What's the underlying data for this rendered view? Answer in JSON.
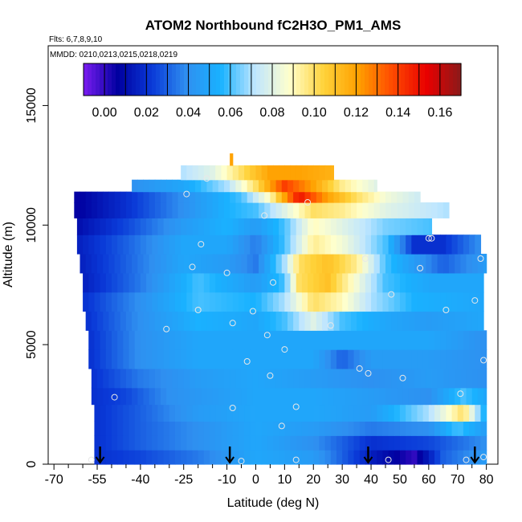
{
  "chart_data": {
    "type": "heatmap",
    "title": "ATOM2 Northbound fC2H3O_PM1_AMS",
    "flights_text": "Flts: 6,7,8,9,10",
    "dates_text": "MMDD: 0210,0213,0215,0218,0219",
    "xlabel": "Latitude (deg N)",
    "ylabel": "Altitude (m)",
    "xlim": [
      -72,
      84
    ],
    "ylim": [
      0,
      17500
    ],
    "x_ticks": [
      -70,
      -55,
      -40,
      -25,
      -10,
      0,
      10,
      20,
      30,
      40,
      50,
      60,
      70,
      80
    ],
    "x_tick_labels": [
      "-70",
      "-55",
      "-40",
      "-25",
      "-10",
      "0",
      "10",
      "20",
      "30",
      "40",
      "50",
      "60",
      "70",
      "80"
    ],
    "y_ticks": [
      0,
      5000,
      10000,
      15000
    ],
    "y_tick_labels": [
      "0",
      "5000",
      "10000",
      "15000"
    ],
    "colorbar": {
      "min": -0.01,
      "max": 0.17,
      "ticks": [
        0.0,
        0.02,
        0.04,
        0.06,
        0.08,
        0.1,
        0.12,
        0.14,
        0.16
      ],
      "tick_labels": [
        "0.00",
        "0.02",
        "0.04",
        "0.06",
        "0.08",
        "0.10",
        "0.12",
        "0.14",
        "0.16"
      ],
      "colors": [
        "#7a1cf0",
        "#0000a0",
        "#0a3ad8",
        "#2f8ff0",
        "#19b2ff",
        "#bfe6ff",
        "#ffffcc",
        "#ffd23a",
        "#ffa000",
        "#ff4a00",
        "#e80000",
        "#8b1a1a"
      ]
    },
    "grid": false,
    "profile_latitudes": [
      -54,
      -9,
      39,
      76
    ],
    "sample_points": [
      {
        "x": -57,
        "y": 180
      },
      {
        "x": -49,
        "y": 2800
      },
      {
        "x": -31,
        "y": 5650
      },
      {
        "x": -24,
        "y": 11300
      },
      {
        "x": -22,
        "y": 8250
      },
      {
        "x": -20,
        "y": 6450
      },
      {
        "x": -19,
        "y": 9200
      },
      {
        "x": -17,
        "y": 11950
      },
      {
        "x": -10,
        "y": 8000
      },
      {
        "x": -8,
        "y": 2350
      },
      {
        "x": -8,
        "y": 5900
      },
      {
        "x": -5,
        "y": 130
      },
      {
        "x": -3,
        "y": 4300
      },
      {
        "x": -1,
        "y": 6400
      },
      {
        "x": 3,
        "y": 10400
      },
      {
        "x": 4,
        "y": 5400
      },
      {
        "x": 5,
        "y": 3700
      },
      {
        "x": 6,
        "y": 7600
      },
      {
        "x": 9,
        "y": 1600
      },
      {
        "x": 10,
        "y": 4800
      },
      {
        "x": 14,
        "y": 2400
      },
      {
        "x": 14,
        "y": 180
      },
      {
        "x": 18,
        "y": 10950
      },
      {
        "x": 26,
        "y": 5800
      },
      {
        "x": 36,
        "y": 4000
      },
      {
        "x": 39,
        "y": 3800
      },
      {
        "x": 47,
        "y": 7100
      },
      {
        "x": 51,
        "y": 3600
      },
      {
        "x": 57,
        "y": 8200
      },
      {
        "x": 60,
        "y": 9450
      },
      {
        "x": 66,
        "y": 6450
      },
      {
        "x": 71,
        "y": 2950
      },
      {
        "x": 73,
        "y": 180
      },
      {
        "x": 76,
        "y": 6850
      },
      {
        "x": 78,
        "y": 8600
      },
      {
        "x": 79,
        "y": 4350
      },
      {
        "x": 79,
        "y": 300
      },
      {
        "x": 61,
        "y": 9450
      },
      {
        "x": 46,
        "y": 180
      },
      {
        "x": 38,
        "y": 8600
      }
    ],
    "rows": [
      {
        "y0": 0,
        "y1": 600,
        "x0": -56,
        "x1": 80,
        "stops": [
          [
            -56,
            0.02
          ],
          [
            -40,
            0.025
          ],
          [
            -20,
            0.035
          ],
          [
            0,
            0.05
          ],
          [
            20,
            0.045
          ],
          [
            40,
            0.015
          ],
          [
            55,
            0.0
          ],
          [
            65,
            0.03
          ],
          [
            80,
            0.045
          ]
        ]
      },
      {
        "y0": 600,
        "y1": 1200,
        "x0": -56,
        "x1": 80,
        "stops": [
          [
            -56,
            0.02
          ],
          [
            -40,
            0.03
          ],
          [
            -20,
            0.04
          ],
          [
            0,
            0.05
          ],
          [
            20,
            0.04
          ],
          [
            40,
            0.02
          ],
          [
            60,
            0.025
          ],
          [
            80,
            0.04
          ]
        ]
      },
      {
        "y0": 1200,
        "y1": 1800,
        "x0": -56,
        "x1": 80,
        "stops": [
          [
            -56,
            0.02
          ],
          [
            -40,
            0.03
          ],
          [
            -20,
            0.04
          ],
          [
            0,
            0.05
          ],
          [
            20,
            0.045
          ],
          [
            40,
            0.035
          ],
          [
            60,
            0.04
          ],
          [
            70,
            0.06
          ],
          [
            80,
            0.045
          ]
        ]
      },
      {
        "y0": 1800,
        "y1": 2500,
        "x0": -56,
        "x1": 80,
        "stops": [
          [
            -56,
            0.02
          ],
          [
            -40,
            0.03
          ],
          [
            -20,
            0.045
          ],
          [
            0,
            0.05
          ],
          [
            20,
            0.05
          ],
          [
            40,
            0.045
          ],
          [
            60,
            0.07
          ],
          [
            72,
            0.1
          ],
          [
            80,
            0.05
          ]
        ]
      },
      {
        "y0": 2500,
        "y1": 3200,
        "x0": -57,
        "x1": 80,
        "stops": [
          [
            -57,
            0.02
          ],
          [
            -45,
            0.025
          ],
          [
            -30,
            0.04
          ],
          [
            0,
            0.05
          ],
          [
            20,
            0.05
          ],
          [
            40,
            0.045
          ],
          [
            60,
            0.04
          ],
          [
            72,
            0.06
          ],
          [
            80,
            0.05
          ]
        ]
      },
      {
        "y0": 3200,
        "y1": 4000,
        "x0": -57,
        "x1": 80,
        "stops": [
          [
            -57,
            0.02
          ],
          [
            -40,
            0.035
          ],
          [
            -20,
            0.045
          ],
          [
            0,
            0.05
          ],
          [
            20,
            0.045
          ],
          [
            40,
            0.04
          ],
          [
            60,
            0.045
          ],
          [
            80,
            0.04
          ]
        ]
      },
      {
        "y0": 4000,
        "y1": 4800,
        "x0": -58,
        "x1": 80,
        "stops": [
          [
            -58,
            0.02
          ],
          [
            -40,
            0.04
          ],
          [
            -20,
            0.05
          ],
          [
            0,
            0.05
          ],
          [
            20,
            0.05
          ],
          [
            30,
            0.03
          ],
          [
            40,
            0.045
          ],
          [
            60,
            0.045
          ],
          [
            80,
            0.04
          ]
        ]
      },
      {
        "y0": 4800,
        "y1": 5600,
        "x0": -58,
        "x1": 80,
        "stops": [
          [
            -58,
            0.02
          ],
          [
            -40,
            0.04
          ],
          [
            -20,
            0.05
          ],
          [
            0,
            0.05
          ],
          [
            20,
            0.05
          ],
          [
            40,
            0.05
          ],
          [
            60,
            0.05
          ],
          [
            80,
            0.04
          ]
        ]
      },
      {
        "y0": 5600,
        "y1": 6400,
        "x0": -59,
        "x1": 79,
        "stops": [
          [
            -59,
            0.02
          ],
          [
            -40,
            0.04
          ],
          [
            -20,
            0.055
          ],
          [
            0,
            0.05
          ],
          [
            10,
            0.06
          ],
          [
            20,
            0.08
          ],
          [
            30,
            0.06
          ],
          [
            45,
            0.05
          ],
          [
            60,
            0.045
          ],
          [
            79,
            0.05
          ]
        ]
      },
      {
        "y0": 6400,
        "y1": 7200,
        "x0": -60,
        "x1": 79,
        "stops": [
          [
            -60,
            0.02
          ],
          [
            -40,
            0.04
          ],
          [
            -20,
            0.06
          ],
          [
            0,
            0.055
          ],
          [
            10,
            0.07
          ],
          [
            20,
            0.1
          ],
          [
            30,
            0.09
          ],
          [
            40,
            0.07
          ],
          [
            55,
            0.055
          ],
          [
            79,
            0.05
          ]
        ]
      },
      {
        "y0": 7200,
        "y1": 8000,
        "x0": -60,
        "x1": 79,
        "stops": [
          [
            -60,
            0.015
          ],
          [
            -40,
            0.035
          ],
          [
            -20,
            0.06
          ],
          [
            0,
            0.045
          ],
          [
            10,
            0.06
          ],
          [
            15,
            0.1
          ],
          [
            25,
            0.11
          ],
          [
            35,
            0.085
          ],
          [
            45,
            0.06
          ],
          [
            60,
            0.05
          ],
          [
            79,
            0.05
          ]
        ]
      },
      {
        "y0": 8000,
        "y1": 8800,
        "x0": -61,
        "x1": 80,
        "stops": [
          [
            -61,
            0.015
          ],
          [
            -45,
            0.03
          ],
          [
            -25,
            0.05
          ],
          [
            -10,
            0.045
          ],
          [
            0,
            0.035
          ],
          [
            10,
            0.07
          ],
          [
            15,
            0.1
          ],
          [
            25,
            0.11
          ],
          [
            35,
            0.095
          ],
          [
            45,
            0.06
          ],
          [
            55,
            0.045
          ],
          [
            65,
            0.03
          ],
          [
            80,
            0.045
          ]
        ]
      },
      {
        "y0": 8800,
        "y1": 9600,
        "x0": -62,
        "x1": 78,
        "stops": [
          [
            -62,
            0.015
          ],
          [
            -45,
            0.03
          ],
          [
            -25,
            0.05
          ],
          [
            -10,
            0.05
          ],
          [
            0,
            0.035
          ],
          [
            10,
            0.06
          ],
          [
            20,
            0.095
          ],
          [
            30,
            0.085
          ],
          [
            45,
            0.06
          ],
          [
            55,
            0.02
          ],
          [
            65,
            0.02
          ],
          [
            78,
            0.04
          ]
        ]
      },
      {
        "y0": 9600,
        "y1": 10300,
        "x0": -62,
        "x1": 61,
        "stops": [
          [
            -62,
            0.01
          ],
          [
            -45,
            0.025
          ],
          [
            -25,
            0.045
          ],
          [
            -10,
            0.055
          ],
          [
            0,
            0.045
          ],
          [
            10,
            0.06
          ],
          [
            20,
            0.09
          ],
          [
            30,
            0.08
          ],
          [
            45,
            0.065
          ],
          [
            61,
            0.06
          ]
        ]
      },
      {
        "y0": 10300,
        "y1": 10950,
        "x0": -63,
        "x1": 67,
        "stops": [
          [
            -63,
            0.005
          ],
          [
            -45,
            0.02
          ],
          [
            -25,
            0.04
          ],
          [
            -10,
            0.055
          ],
          [
            0,
            0.06
          ],
          [
            10,
            0.08
          ],
          [
            20,
            0.1
          ],
          [
            30,
            0.095
          ],
          [
            45,
            0.08
          ],
          [
            67,
            0.07
          ]
        ]
      },
      {
        "y0": 10950,
        "y1": 11400,
        "x0": -63,
        "x1": 57,
        "stops": [
          [
            -63,
            0.005
          ],
          [
            -45,
            0.02
          ],
          [
            -25,
            0.04
          ],
          [
            -5,
            0.06
          ],
          [
            5,
            0.09
          ],
          [
            15,
            0.15
          ],
          [
            25,
            0.12
          ],
          [
            35,
            0.1
          ],
          [
            45,
            0.085
          ],
          [
            57,
            0.075
          ]
        ]
      },
      {
        "y0": 11400,
        "y1": 11900,
        "x0": -43,
        "x1": 42,
        "stops": [
          [
            -43,
            0.04
          ],
          [
            -25,
            0.05
          ],
          [
            -10,
            0.07
          ],
          [
            0,
            0.1
          ],
          [
            10,
            0.14
          ],
          [
            20,
            0.12
          ],
          [
            30,
            0.095
          ],
          [
            42,
            0.08
          ]
        ]
      },
      {
        "y0": 11900,
        "y1": 12500,
        "x0": -26,
        "x1": 27,
        "stops": [
          [
            -26,
            0.07
          ],
          [
            -15,
            0.08
          ],
          [
            -5,
            0.1
          ],
          [
            5,
            0.12
          ],
          [
            15,
            0.12
          ],
          [
            27,
            0.115
          ]
        ]
      },
      {
        "y0": 12500,
        "y1": 13000,
        "x0": -9,
        "x1": -8,
        "stops": [
          [
            -9,
            0.12
          ],
          [
            -8,
            0.12
          ]
        ]
      }
    ]
  }
}
